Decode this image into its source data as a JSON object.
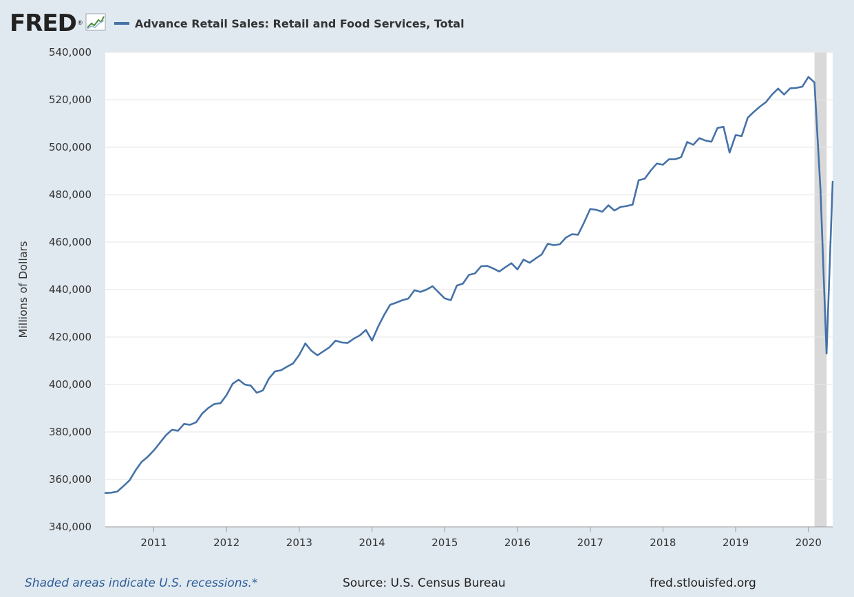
{
  "header": {
    "logo": "FRED",
    "legend_label": "Advance Retail Sales: Retail and Food Services, Total",
    "series_color": "#4572a7"
  },
  "footer": {
    "recession_note": "Shaded areas indicate U.S. recessions.*",
    "source": "Source: U.S. Census Bureau",
    "site": "fred.stlouisfed.org"
  },
  "chart_data": {
    "type": "line",
    "title": "Advance Retail Sales: Retail and Food Services, Total",
    "xlabel": "",
    "ylabel": "Millions of Dollars",
    "ylim": [
      340000,
      540000
    ],
    "xlim": [
      2010.333,
      2020.333
    ],
    "yticks": [
      340000,
      360000,
      380000,
      400000,
      420000,
      440000,
      460000,
      480000,
      500000,
      520000,
      540000
    ],
    "ytick_labels": [
      "340,000",
      "360,000",
      "380,000",
      "400,000",
      "420,000",
      "440,000",
      "460,000",
      "480,000",
      "500,000",
      "520,000",
      "540,000"
    ],
    "xticks": [
      2011,
      2012,
      2013,
      2014,
      2015,
      2016,
      2017,
      2018,
      2019,
      2020
    ],
    "xtick_labels": [
      "2011",
      "2012",
      "2013",
      "2014",
      "2015",
      "2016",
      "2017",
      "2018",
      "2019",
      "2020"
    ],
    "recession": [
      2020.083,
      2020.25
    ],
    "grid": true,
    "series": [
      {
        "name": "Advance Retail Sales: Retail and Food Services, Total",
        "start": 2010.333,
        "step": 0.08333,
        "values": [
          354300,
          354400,
          354900,
          357200,
          359600,
          363800,
          367400,
          369500,
          372200,
          375400,
          378600,
          380900,
          380500,
          383400,
          383000,
          384100,
          387800,
          390100,
          391800,
          392100,
          395500,
          400300,
          402000,
          400000,
          399500,
          396500,
          397500,
          402500,
          405500,
          406000,
          407500,
          408900,
          412500,
          417300,
          414200,
          412300,
          414000,
          415700,
          418500,
          417700,
          417500,
          419300,
          420700,
          423000,
          418500,
          424300,
          429300,
          433600,
          434500,
          435500,
          436200,
          439700,
          439000,
          440000,
          441400,
          438800,
          436300,
          435500,
          441700,
          442500,
          446200,
          446800,
          449800,
          450000,
          448900,
          447600,
          449400,
          451100,
          448500,
          452600,
          451300,
          453100,
          454800,
          459300,
          458700,
          459100,
          461900,
          463300,
          463100,
          468300,
          473900,
          473600,
          472800,
          475500,
          473300,
          474800,
          475200,
          475800,
          486100,
          486700,
          490200,
          493100,
          492600,
          494900,
          494900,
          495800,
          502200,
          501000,
          503800,
          502800,
          502300,
          508100,
          508600,
          497700,
          505100,
          504700,
          512400,
          514900,
          517100,
          519000,
          522200,
          524700,
          522200,
          524800,
          525000,
          525500,
          529600,
          527300,
          482000,
          413000,
          485500
        ]
      }
    ]
  }
}
